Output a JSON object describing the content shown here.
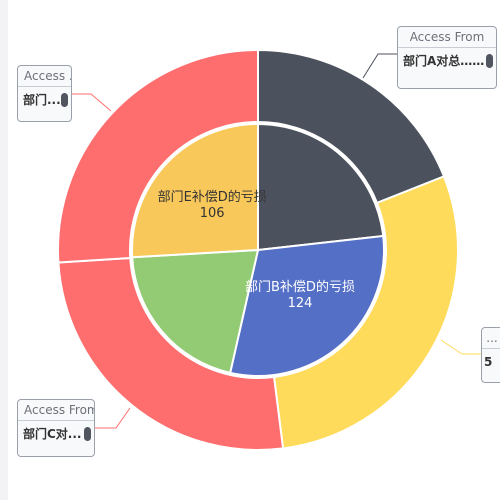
{
  "chart_data": {
    "type": "pie",
    "inner_ring": [
      {
        "name": "",
        "value": 95,
        "color": "#4c525d",
        "label": ""
      },
      {
        "name": "部门B补偿D的亏损",
        "value": 124,
        "color": "#546fc6",
        "label": "部门B补偿D的亏损",
        "value_label": "124"
      },
      {
        "name": "",
        "value": 84,
        "color": "#93cb75",
        "label": ""
      },
      {
        "name": "部门E补偿D的亏损",
        "value": 106,
        "color": "#f9c85a",
        "label": "部门E补偿D的亏损",
        "value_label": "106"
      }
    ],
    "outer_ring": [
      {
        "name": "部门A对总...",
        "value": 19,
        "color": "#4c525d"
      },
      {
        "name": "",
        "value": 29,
        "color": "#ffdb5c"
      },
      {
        "name": "部门C对...",
        "value": 26,
        "color": "#ff6e6e"
      },
      {
        "name": "部门...",
        "value": 26,
        "color": "#ff6e6e"
      }
    ]
  },
  "tooltips": {
    "top_right": {
      "head": "Access From",
      "body": "部门A对总……"
    },
    "top_left": {
      "head": "Access ...",
      "body": "部门..."
    },
    "bottom_left": {
      "head": "Access From",
      "body": "部门C对..."
    },
    "right": {
      "head": "...",
      "body": "5"
    }
  }
}
